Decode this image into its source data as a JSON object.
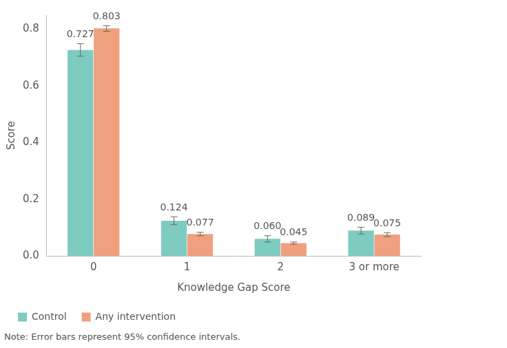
{
  "chart_data": {
    "type": "bar",
    "categories": [
      "0",
      "1",
      "2",
      "3 or more"
    ],
    "x_label": "Knowledge Gap Score",
    "y_label": "Score",
    "note": "Note: Error bars represent 95% confidence intervals.",
    "series": [
      {
        "name": "Control",
        "color": "#7ecbc0",
        "values": [
          0.727,
          0.124,
          0.06,
          0.089
        ],
        "value_labels": [
          "0.727",
          "0.124",
          "0.060",
          "0.089"
        ],
        "error_low": [
          0.705,
          0.11,
          0.049,
          0.077
        ],
        "error_high": [
          0.749,
          0.138,
          0.071,
          0.101
        ]
      },
      {
        "name": "Any intervention",
        "color": "#f0a07e",
        "values": [
          0.803,
          0.077,
          0.045,
          0.075
        ],
        "value_labels": [
          "0.803",
          "0.077",
          "0.045",
          "0.075"
        ],
        "error_low": [
          0.793,
          0.071,
          0.041,
          0.068
        ],
        "error_high": [
          0.813,
          0.083,
          0.049,
          0.082
        ]
      }
    ],
    "ylim": [
      0,
      0.85
    ],
    "yticks": [
      {
        "value": 0,
        "label": "0.0"
      },
      0.2,
      0.4,
      0.6,
      0.8
    ],
    "grid": false,
    "legend": "bottom-left",
    "data_labels": true
  }
}
